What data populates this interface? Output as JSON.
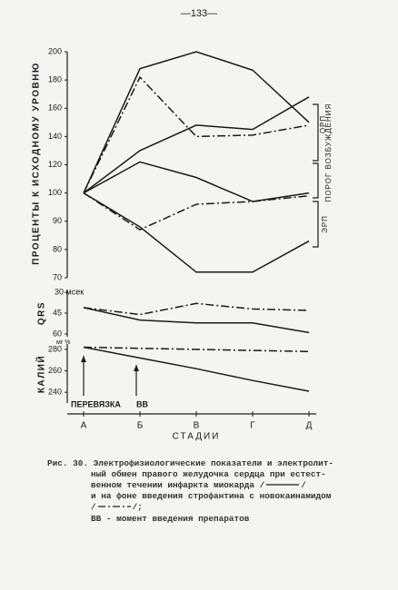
{
  "page": {
    "header": "—133—",
    "caption": [
      "Рис. 30. Электрофизиологические показатели и электролит-",
      "ный обмен правого желудочка сердца при естест-",
      "венном течении инфаркта миокарда /",
      "/",
      "и на фоне введения строфантина с новокаинамидом",
      "/",
      "/;"
    ],
    "note": "ВВ - момент введения препаратов"
  },
  "chart_data": [
    {
      "type": "line",
      "ylabel": "ПРОЦЕНТЫ К ИСХОДНОМУ УРОВНЮ",
      "scale": "piecewise",
      "ylim": [
        70,
        200
      ],
      "yticks": [
        200,
        180,
        160,
        140,
        120,
        100,
        90,
        80,
        70
      ],
      "annotations": [
        "ОРП",
        "ПОРОГ ВОЗБУЖДЕНИЯ",
        "ЭРП"
      ],
      "series": [
        {
          "style": "solid",
          "color": "#1a1a1a",
          "values": [
            100,
            188,
            200,
            187,
            150
          ]
        },
        {
          "style": "dashdot",
          "color": "#1a1a1a",
          "values": [
            100,
            182,
            140,
            141,
            148
          ]
        },
        {
          "style": "solid",
          "color": "#1a1a1a",
          "values": [
            100,
            130,
            148,
            145,
            168
          ]
        },
        {
          "style": "solid",
          "color": "#1a1a1a",
          "values": [
            100,
            122,
            111,
            97,
            100
          ]
        },
        {
          "style": "dashdot",
          "color": "#1a1a1a",
          "values": [
            100,
            87,
            96,
            97,
            99
          ]
        },
        {
          "style": "solid",
          "color": "#1a1a1a",
          "values": [
            100,
            88,
            72,
            72,
            83
          ]
        }
      ]
    },
    {
      "type": "line",
      "ylabel": "QRS",
      "invert": true,
      "ylim": [
        28,
        62
      ],
      "yticks": [
        {
          "value": 30,
          "label": "30 мсек"
        },
        45,
        60
      ],
      "series": [
        {
          "style": "dashdot",
          "color": "#1a1a1a",
          "values": [
            41,
            46,
            38,
            42,
            43
          ]
        },
        {
          "style": "solid",
          "color": "#1a1a1a",
          "values": [
            41,
            50,
            52,
            52,
            59
          ]
        }
      ]
    },
    {
      "type": "line",
      "ylabel": "КАЛИЙ",
      "unit": "мг %",
      "ylim": [
        230,
        285
      ],
      "yticks": [
        280,
        260,
        240
      ],
      "categories": [
        "А",
        "Б",
        "В",
        "Г",
        "Д"
      ],
      "xlabel": "СТАДИИ",
      "annotations": [
        "ПЕРЕВЯЗКА",
        "ВВ"
      ],
      "series": [
        {
          "style": "dashdot",
          "color": "#1a1a1a",
          "values": [
            282,
            281,
            280,
            279,
            278
          ]
        },
        {
          "style": "solid",
          "color": "#1a1a1a",
          "values": [
            282,
            272,
            262,
            251,
            241
          ]
        }
      ]
    }
  ]
}
